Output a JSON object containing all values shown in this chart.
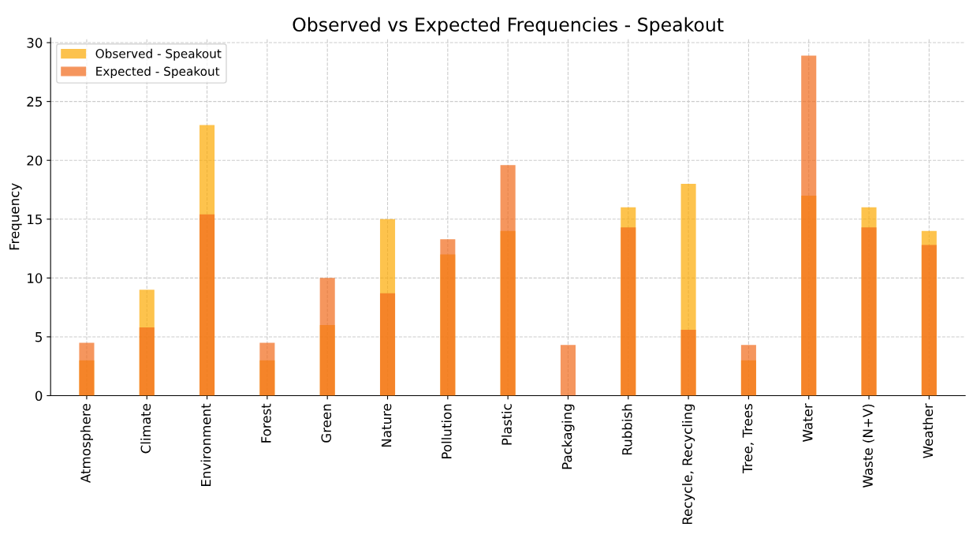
{
  "chart_data": {
    "type": "bar",
    "title": "Observed vs Expected Frequencies - Speakout",
    "ylabel": "Frequency",
    "categories": [
      "Atmosphere",
      "Climate",
      "Environment",
      "Forest",
      "Green",
      "Nature",
      "Pollution",
      "Plastic",
      "Packaging",
      "Rubbish",
      "Recycle, Recycling",
      "Tree, Trees",
      "Water",
      "Waste (N+V)",
      "Weather"
    ],
    "series": [
      {
        "name": "Observed - Speakout",
        "color": "#fca902",
        "values": [
          3,
          9,
          23,
          3,
          6,
          15,
          12,
          14,
          0,
          16,
          18,
          3,
          17,
          16,
          14
        ]
      },
      {
        "name": "Expected - Speakout",
        "color": "#f1691a",
        "values": [
          4.5,
          5.8,
          15.4,
          4.5,
          10,
          8.7,
          13.3,
          19.6,
          4.3,
          14.3,
          5.6,
          4.3,
          28.9,
          14.3,
          12.8
        ]
      }
    ],
    "ylim": [
      0,
      30.4
    ],
    "yticks": [
      0,
      5,
      10,
      15,
      20,
      25,
      30
    ],
    "grid": true,
    "legend": "top left"
  }
}
